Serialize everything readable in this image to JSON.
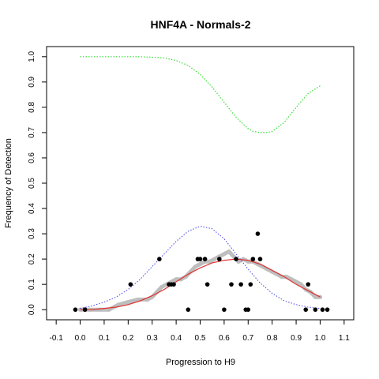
{
  "chart_data": {
    "type": "scatter",
    "title": "HNF4A - Normals-2",
    "xlabel": "Progression to H9",
    "ylabel": "Frequency of Detection",
    "xlim": [
      -0.14,
      1.14
    ],
    "ylim": [
      -0.04,
      1.04
    ],
    "x_ticks": [
      "-0.1",
      "0.0",
      "0.1",
      "0.2",
      "0.3",
      "0.4",
      "0.5",
      "0.6",
      "0.7",
      "0.8",
      "0.9",
      "1.0",
      "1.1"
    ],
    "x_tick_values": [
      -0.1,
      0.0,
      0.1,
      0.2,
      0.3,
      0.4,
      0.5,
      0.6,
      0.7,
      0.8,
      0.9,
      1.0,
      1.1
    ],
    "y_ticks": [
      "0.0",
      "0.1",
      "0.2",
      "0.3",
      "0.4",
      "0.5",
      "0.6",
      "0.7",
      "0.8",
      "0.9",
      "1.0"
    ],
    "y_tick_values": [
      0.0,
      0.1,
      0.2,
      0.3,
      0.4,
      0.5,
      0.6,
      0.7,
      0.8,
      0.9,
      1.0
    ],
    "grid": false,
    "colors": {
      "points": "#000000",
      "grey_band": "#bebebe",
      "red_fit": "#e0312f",
      "blue_curve": "#4444ee",
      "green_curve": "#33dd33"
    },
    "series": [
      {
        "style": "black-points",
        "x": [
          -0.02,
          0.02,
          0.21,
          0.33,
          0.37,
          0.38,
          0.39,
          0.45,
          0.49,
          0.5,
          0.52,
          0.53,
          0.58,
          0.6,
          0.63,
          0.65,
          0.67,
          0.69,
          0.7,
          0.71,
          0.72,
          0.74,
          0.75,
          0.94,
          0.95,
          0.98,
          1.01,
          1.03
        ],
        "y": [
          0.0,
          0.0,
          0.1,
          0.2,
          0.1,
          0.1,
          0.1,
          0.0,
          0.2,
          0.2,
          0.2,
          0.1,
          0.2,
          0.0,
          0.1,
          0.2,
          0.1,
          0.0,
          0.0,
          0.1,
          0.2,
          0.3,
          0.2,
          0.0,
          0.1,
          0.0,
          0.0,
          0.0
        ]
      },
      {
        "style": "grey-band",
        "x": [
          0.0,
          0.04,
          0.08,
          0.12,
          0.16,
          0.2,
          0.24,
          0.28,
          0.3,
          0.32,
          0.34,
          0.36,
          0.38,
          0.4,
          0.42,
          0.44,
          0.46,
          0.48,
          0.5,
          0.52,
          0.54,
          0.56,
          0.58,
          0.6,
          0.62,
          0.64,
          0.66,
          0.68,
          0.7,
          0.72,
          0.74,
          0.76,
          0.78,
          0.8,
          0.82,
          0.84,
          0.86,
          0.88,
          0.9,
          0.92,
          0.94,
          0.96,
          0.98,
          1.0
        ],
        "y": [
          0.0,
          0.0,
          0.0,
          0.0,
          0.02,
          0.03,
          0.04,
          0.04,
          0.05,
          0.07,
          0.09,
          0.1,
          0.11,
          0.12,
          0.12,
          0.13,
          0.15,
          0.17,
          0.18,
          0.19,
          0.19,
          0.2,
          0.21,
          0.22,
          0.23,
          0.21,
          0.19,
          0.2,
          0.19,
          0.19,
          0.18,
          0.17,
          0.16,
          0.15,
          0.14,
          0.13,
          0.13,
          0.12,
          0.11,
          0.1,
          0.08,
          0.07,
          0.05,
          0.05
        ]
      },
      {
        "style": "red-fit",
        "x": [
          0.0,
          0.05,
          0.1,
          0.15,
          0.2,
          0.25,
          0.3,
          0.35,
          0.4,
          0.45,
          0.5,
          0.55,
          0.6,
          0.65,
          0.7,
          0.75,
          0.8,
          0.85,
          0.9,
          0.95,
          1.0
        ],
        "y": [
          0.0,
          0.0,
          0.005,
          0.01,
          0.02,
          0.035,
          0.055,
          0.08,
          0.11,
          0.14,
          0.165,
          0.185,
          0.195,
          0.2,
          0.195,
          0.18,
          0.155,
          0.13,
          0.1,
          0.075,
          0.05
        ]
      },
      {
        "style": "blue-dotted",
        "x": [
          0.0,
          0.05,
          0.1,
          0.15,
          0.2,
          0.25,
          0.3,
          0.35,
          0.4,
          0.45,
          0.5,
          0.55,
          0.6,
          0.65,
          0.7,
          0.75,
          0.8,
          0.85,
          0.9,
          0.95,
          1.0
        ],
        "y": [
          0.005,
          0.015,
          0.03,
          0.05,
          0.08,
          0.12,
          0.17,
          0.22,
          0.27,
          0.31,
          0.33,
          0.32,
          0.28,
          0.22,
          0.16,
          0.105,
          0.065,
          0.035,
          0.02,
          0.01,
          0.005
        ]
      },
      {
        "style": "green-dotted",
        "x": [
          0.0,
          0.05,
          0.1,
          0.15,
          0.2,
          0.25,
          0.3,
          0.35,
          0.4,
          0.45,
          0.5,
          0.55,
          0.6,
          0.65,
          0.7,
          0.72,
          0.75,
          0.78,
          0.8,
          0.85,
          0.9,
          0.95,
          1.0
        ],
        "y": [
          1.0,
          1.0,
          1.0,
          1.0,
          1.0,
          1.0,
          0.998,
          0.995,
          0.985,
          0.965,
          0.93,
          0.88,
          0.82,
          0.76,
          0.715,
          0.705,
          0.7,
          0.7,
          0.705,
          0.74,
          0.8,
          0.855,
          0.885
        ]
      }
    ]
  }
}
